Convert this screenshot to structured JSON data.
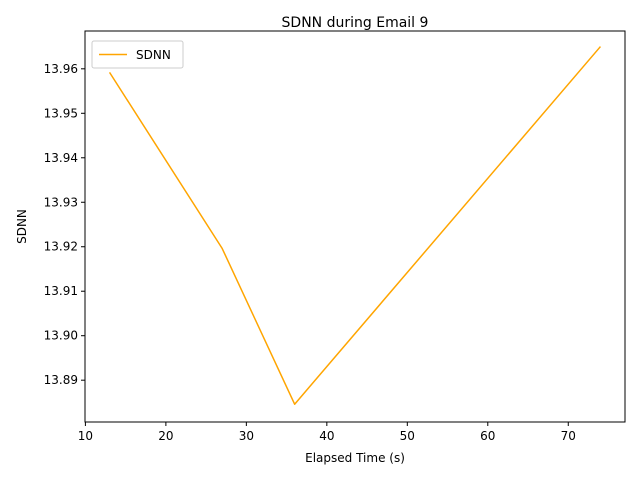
{
  "chart_data": {
    "type": "line",
    "title": "SDNN during Email 9",
    "xlabel": "Elapsed Time (s)",
    "ylabel": "SDNN",
    "xlim": [
      9.95,
      77.05
    ],
    "ylim": [
      13.8806,
      13.9685
    ],
    "xticks": [
      10,
      20,
      30,
      40,
      50,
      60,
      70
    ],
    "yticks": [
      13.89,
      13.9,
      13.91,
      13.92,
      13.93,
      13.94,
      13.95,
      13.96
    ],
    "ytick_labels": [
      "13.89",
      "13.90",
      "13.91",
      "13.92",
      "13.93",
      "13.94",
      "13.95",
      "13.96"
    ],
    "grid": false,
    "legend_position": "upper-left",
    "series": [
      {
        "name": "SDNN",
        "color": "#ffa500",
        "x": [
          13,
          27,
          36,
          74
        ],
        "y": [
          13.9592,
          13.9196,
          13.8846,
          13.965
        ]
      }
    ]
  }
}
